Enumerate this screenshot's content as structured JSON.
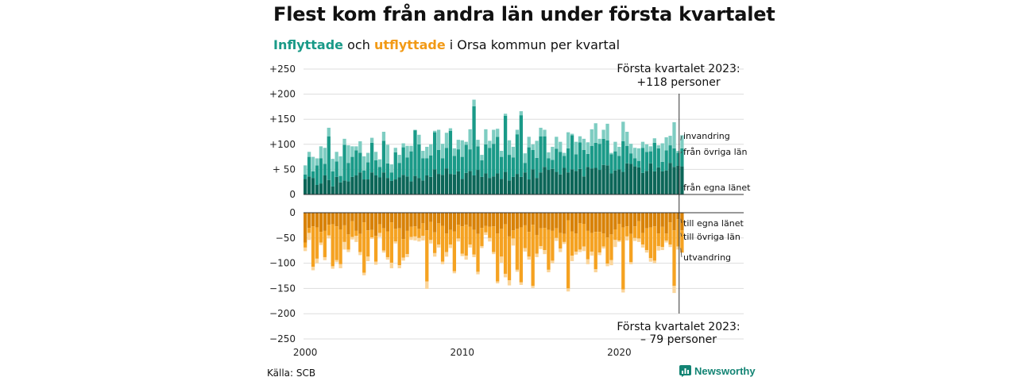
{
  "header": {
    "title": "Flest kom från andra län under första kvartalet",
    "subtitle_in": "Inflyttade",
    "subtitle_mid": " och ",
    "subtitle_out": "utflyttade",
    "subtitle_rest": " i Orsa kommun per kvartal"
  },
  "footer": {
    "source": "Källa: SCB",
    "brand": "Newsworthy"
  },
  "colors": {
    "in_own": "#0c6658",
    "in_other": "#1a9a88",
    "in_imm": "#7ecdc2",
    "out_own": "#d88208",
    "out_other": "#f5a221",
    "out_emi": "#fbd59a",
    "grid": "#dddddd",
    "axis": "#333333",
    "brand": "#138474"
  },
  "chart_data": {
    "type": "bar",
    "stacked": true,
    "x_start": 2000,
    "period": "quarter",
    "x_ticks": [
      2000,
      2010,
      2020
    ],
    "top_panel": {
      "ylim": [
        0,
        250
      ],
      "yticks": [
        0,
        50,
        100,
        150,
        200,
        250
      ],
      "ytick_labels": [
        "0",
        "+ 50",
        "+100",
        "+150",
        "+200",
        "+250"
      ],
      "series": [
        {
          "name": "från egna länet",
          "values": [
            31,
            36,
            33,
            19,
            22,
            38,
            29,
            16,
            35,
            24,
            28,
            26,
            35,
            38,
            44,
            30,
            30,
            44,
            38,
            34,
            44,
            33,
            27,
            30,
            34,
            39,
            36,
            26,
            37,
            33,
            28,
            38,
            35,
            50,
            41,
            39,
            52,
            41,
            40,
            46,
            31,
            43,
            47,
            38,
            49,
            35,
            42,
            33,
            36,
            42,
            31,
            45,
            28,
            35,
            41,
            35,
            44,
            30,
            50,
            33,
            44,
            55,
            49,
            51,
            45,
            40,
            53,
            44,
            50,
            47,
            51,
            36,
            55,
            52,
            53,
            49,
            59,
            58,
            42,
            48,
            50,
            45,
            62,
            61,
            56,
            54,
            43,
            47,
            62,
            46,
            54,
            46,
            48,
            63,
            55,
            57,
            56
          ]
        },
        {
          "name": "från övriga län",
          "values": [
            9,
            39,
            13,
            39,
            50,
            23,
            87,
            30,
            31,
            13,
            71,
            37,
            40,
            50,
            39,
            18,
            34,
            59,
            30,
            21,
            63,
            29,
            17,
            54,
            29,
            55,
            38,
            60,
            91,
            67,
            44,
            34,
            43,
            74,
            48,
            33,
            41,
            86,
            37,
            44,
            44,
            56,
            43,
            138,
            47,
            33,
            58,
            60,
            65,
            73,
            44,
            112,
            51,
            39,
            79,
            123,
            19,
            64,
            39,
            40,
            72,
            61,
            23,
            18,
            46,
            45,
            24,
            48,
            68,
            33,
            53,
            53,
            26,
            45,
            50,
            52,
            52,
            50,
            38,
            38,
            27,
            61,
            35,
            21,
            16,
            13,
            50,
            38,
            24,
            57,
            38,
            19,
            40,
            35,
            37,
            26,
            36
          ]
        },
        {
          "name": "invandring",
          "values": [
            18,
            10,
            29,
            14,
            24,
            32,
            17,
            25,
            19,
            39,
            12,
            35,
            21,
            8,
            23,
            28,
            19,
            10,
            17,
            15,
            18,
            37,
            16,
            9,
            16,
            8,
            23,
            11,
            1,
            19,
            15,
            23,
            22,
            3,
            40,
            29,
            30,
            5,
            15,
            19,
            33,
            6,
            40,
            13,
            13,
            11,
            30,
            14,
            28,
            16,
            12,
            4,
            29,
            21,
            9,
            8,
            19,
            21,
            11,
            34,
            17,
            13,
            12,
            26,
            24,
            20,
            6,
            32,
            3,
            25,
            12,
            22,
            23,
            33,
            39,
            10,
            18,
            33,
            3,
            19,
            18,
            39,
            28,
            19,
            21,
            25,
            12,
            15,
            10,
            9,
            6,
            37,
            26,
            19,
            52,
            4,
            26
          ]
        }
      ],
      "annotation": {
        "line1": "Första kvartalet 2023:",
        "line2": "+118 personer"
      },
      "labels": [
        "invandring",
        "från övriga län",
        "från egna länet"
      ]
    },
    "bottom_panel": {
      "ylim": [
        -250,
        0
      ],
      "yticks": [
        0,
        -50,
        -100,
        -150,
        -200,
        -250
      ],
      "ytick_labels": [
        "0",
        "−50",
        "−100",
        "−150",
        "−200",
        "−250"
      ],
      "series": [
        {
          "name": "till egna länet",
          "values": [
            -59,
            -30,
            -27,
            -29,
            -38,
            -36,
            -24,
            -23,
            -27,
            -33,
            -25,
            -43,
            -17,
            -36,
            -42,
            -19,
            -35,
            -34,
            -46,
            -23,
            -31,
            -37,
            -19,
            -32,
            -31,
            -52,
            -36,
            -28,
            -27,
            -32,
            -21,
            -35,
            -18,
            -39,
            -21,
            -26,
            -41,
            -34,
            -37,
            -24,
            -27,
            -24,
            -28,
            -34,
            -42,
            -30,
            -26,
            -28,
            -27,
            -41,
            -32,
            -23,
            -47,
            -35,
            -32,
            -29,
            -25,
            -38,
            -24,
            -44,
            -31,
            -30,
            -34,
            -36,
            -31,
            -40,
            -42,
            -15,
            -37,
            -41,
            -21,
            -22,
            -36,
            -40,
            -38,
            -38,
            -41,
            -49,
            -43,
            -33,
            -22,
            -29,
            -27,
            -42,
            -27,
            -17,
            -40,
            -31,
            -29,
            -27,
            -41,
            -28,
            -41,
            -19,
            -35,
            -13,
            -35
          ]
        },
        {
          "name": "till övriga län",
          "values": [
            -10,
            -10,
            -80,
            -62,
            -21,
            -52,
            -21,
            -83,
            -67,
            -69,
            -33,
            -30,
            -31,
            -10,
            -36,
            -100,
            -52,
            -15,
            -51,
            -17,
            -44,
            -51,
            -80,
            -25,
            -73,
            -37,
            -46,
            -20,
            -20,
            -18,
            -25,
            -101,
            -36,
            -41,
            -42,
            -71,
            -37,
            -29,
            -79,
            -27,
            -54,
            -61,
            -35,
            -49,
            -75,
            -36,
            -13,
            -22,
            -51,
            -95,
            -55,
            -98,
            -87,
            -16,
            -81,
            -109,
            -45,
            -49,
            -121,
            -37,
            -35,
            -44,
            -79,
            -59,
            -19,
            -31,
            -16,
            -135,
            -48,
            -36,
            -52,
            -45,
            -56,
            -37,
            -74,
            -41,
            -26,
            -52,
            -51,
            -21,
            -33,
            -123,
            -20,
            -56,
            -23,
            -34,
            -23,
            -43,
            -61,
            -68,
            -25,
            -40,
            -14,
            -44,
            -110,
            -54,
            -44
          ]
        },
        {
          "name": "utvandring",
          "values": [
            -7,
            -14,
            -7,
            -9,
            -5,
            -6,
            -6,
            -5,
            -4,
            -8,
            -15,
            -5,
            -5,
            -12,
            -6,
            -5,
            -9,
            -3,
            -6,
            -8,
            -4,
            -5,
            -11,
            -4,
            -6,
            -6,
            -6,
            -6,
            -8,
            -7,
            -9,
            -15,
            -7,
            -7,
            -6,
            -5,
            -9,
            -7,
            -4,
            -6,
            -5,
            -8,
            -6,
            -5,
            -5,
            -4,
            -5,
            -7,
            -4,
            -4,
            -12,
            -7,
            -10,
            -14,
            -4,
            -5,
            -7,
            -6,
            -4,
            -7,
            -6,
            -8,
            -5,
            -5,
            -6,
            -7,
            -4,
            -6,
            -11,
            -6,
            -5,
            -9,
            -10,
            -8,
            -6,
            -5,
            -4,
            -5,
            -10,
            -14,
            -3,
            -6,
            -8,
            -4,
            -6,
            -7,
            -6,
            -5,
            -7,
            -5,
            -9,
            -6,
            -4,
            -5,
            -14,
            -6,
            0
          ]
        }
      ],
      "annotation": {
        "line1": "Första kvartalet 2023:",
        "line2": "– 79 personer"
      },
      "labels": [
        "till egna länet",
        "till övriga län",
        "utvandring"
      ]
    }
  }
}
